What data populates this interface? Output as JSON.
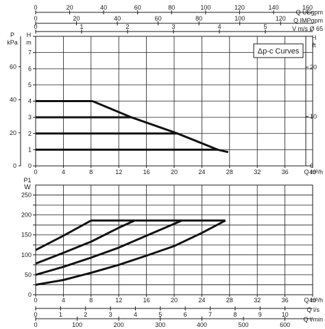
{
  "chart_data": [
    {
      "type": "line",
      "title": "Δp-c Curves",
      "xlabel": "Q m³/h",
      "xlim": [
        0,
        40
      ],
      "x_ticks": [
        0,
        4,
        8,
        12,
        16,
        20,
        24,
        28,
        32,
        36,
        40
      ],
      "x_tick_labels": [
        "0",
        "4",
        "8",
        "12",
        "16",
        "20",
        "24",
        "28",
        "32",
        "36",
        "40"
      ],
      "ylabel_H": "H m",
      "ylim_H": [
        0,
        8
      ],
      "y_ticks_H": [
        0,
        1,
        2,
        3,
        4,
        5,
        6,
        7,
        8
      ],
      "y_tick_labels_H": [
        "0",
        "1",
        "2",
        "3",
        "4",
        "5",
        "6",
        "7",
        ""
      ],
      "ylabel_P": "P kPa",
      "y_ticks_P": [
        0,
        20,
        40,
        60
      ],
      "y_tick_labels_P": [
        "0",
        "20",
        "40",
        "60"
      ],
      "ylabel_H_ft": "H ft",
      "y_ticks_ft": [
        0,
        10,
        20
      ],
      "y_tick_labels_ft": [
        "0",
        "10",
        "20"
      ],
      "top_axes": [
        {
          "label": "Q USgpm",
          "ticks": [
            0,
            20,
            40,
            60,
            80,
            100,
            120,
            140,
            160
          ],
          "tick_labels": [
            "0",
            "20",
            "40",
            "60",
            "80",
            "100",
            "120",
            "140",
            "160"
          ]
        },
        {
          "label": "Q IMPgpm",
          "ticks": [
            0,
            20,
            40,
            60,
            80,
            100,
            120
          ],
          "tick_labels": [
            "0",
            "20",
            "40",
            "60",
            "80",
            "100",
            "120"
          ]
        },
        {
          "label": "V m/s Ø 65",
          "ticks": [
            0,
            1,
            2,
            3,
            4,
            5
          ],
          "tick_labels": [
            "0",
            "1",
            "2",
            "3",
            "4",
            "5"
          ]
        }
      ],
      "grid": true,
      "series": [
        {
          "x": [
            0,
            26.3
          ],
          "y": [
            1,
            1
          ]
        },
        {
          "x": [
            0,
            20.5
          ],
          "y": [
            2,
            2
          ]
        },
        {
          "x": [
            0,
            13.8
          ],
          "y": [
            3,
            3
          ]
        },
        {
          "x": [
            0,
            8.2
          ],
          "y": [
            4,
            4
          ]
        },
        {
          "x": [
            8.2,
            13.8,
            20.5,
            26.3,
            27.8
          ],
          "y": [
            4,
            3,
            2,
            1,
            0.85
          ]
        }
      ]
    },
    {
      "type": "line",
      "xlabel": "Q m³/h",
      "xlim": [
        0,
        40
      ],
      "x_ticks": [
        0,
        4,
        8,
        12,
        16,
        20,
        24,
        28,
        32,
        36,
        40
      ],
      "x_tick_labels": [
        "0",
        "4",
        "8",
        "12",
        "16",
        "20",
        "24",
        "28",
        "32",
        "36",
        "40"
      ],
      "ylabel": "P1 W",
      "ylim": [
        0,
        275
      ],
      "y_ticks": [
        0,
        25,
        50,
        75,
        100,
        125,
        150,
        175,
        200,
        225,
        250
      ],
      "y_tick_labels": [
        "0",
        "",
        "50",
        "",
        "100",
        "",
        "150",
        "",
        "200",
        "",
        "250"
      ],
      "bottom_axes": [
        {
          "label": "Q l/s",
          "ticks": [
            0,
            1,
            2,
            3,
            4,
            5,
            6,
            7,
            8,
            9,
            10
          ],
          "tick_labels": [
            "0",
            "1",
            "2",
            "3",
            "4",
            "5",
            "6",
            "7",
            "8",
            "9",
            "10"
          ]
        },
        {
          "label": "Q l/min",
          "ticks": [
            0,
            100,
            200,
            300,
            400,
            500,
            600
          ],
          "tick_labels": [
            "0",
            "100",
            "200",
            "300",
            "400",
            "500",
            "600"
          ]
        }
      ],
      "grid": true,
      "series": [
        {
          "x": [
            0,
            4,
            8,
            13.5,
            27.4
          ],
          "y": [
            112,
            148,
            186,
            186,
            186
          ]
        },
        {
          "x": [
            0,
            4,
            8,
            12,
            14.3
          ],
          "y": [
            78,
            105,
            133,
            168,
            186
          ]
        },
        {
          "x": [
            0,
            4,
            8,
            12,
            16,
            21.1
          ],
          "y": [
            50,
            70,
            93,
            118,
            148,
            186
          ]
        },
        {
          "x": [
            0,
            4,
            8,
            12,
            16,
            20,
            24,
            27.4
          ],
          "y": [
            25,
            37,
            55,
            75,
            98,
            122,
            155,
            186
          ]
        }
      ]
    }
  ]
}
